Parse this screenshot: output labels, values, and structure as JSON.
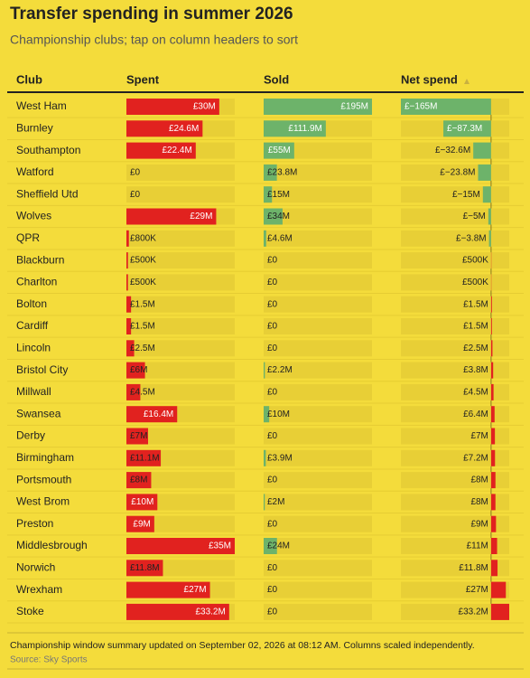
{
  "chart_data": {
    "type": "bar-table",
    "title": "Transfer spending in summer 2026",
    "subtitle": "Championship clubs; tap on column headers to sort",
    "category_label": "Club",
    "categories": [
      "West Ham",
      "Burnley",
      "Southampton",
      "Watford",
      "Sheffield Utd",
      "Wolves",
      "QPR",
      "Blackburn",
      "Charlton",
      "Bolton",
      "Cardiff",
      "Lincoln",
      "Bristol City",
      "Millwall",
      "Swansea",
      "Derby",
      "Birmingham",
      "Portsmouth",
      "West Brom",
      "Preston",
      "Middlesbrough",
      "Norwich",
      "Wrexham",
      "Stoke"
    ],
    "series": [
      {
        "name": "Spent",
        "color": "#e1221f",
        "values": [
          30,
          24.6,
          22.4,
          0,
          0,
          29,
          0.8,
          0.5,
          0.5,
          1.5,
          1.5,
          2.5,
          6,
          4.5,
          16.4,
          7,
          11.1,
          8,
          10,
          9,
          35,
          11.8,
          27,
          33.2
        ],
        "value_labels": [
          "£30M",
          "£24.6M",
          "£22.4M",
          "£0",
          "£0",
          "£29M",
          "£800K",
          "£500K",
          "£500K",
          "£1.5M",
          "£1.5M",
          "£2.5M",
          "£6M",
          "£4.5M",
          "£16.4M",
          "£7M",
          "£11.1M",
          "£8M",
          "£10M",
          "£9M",
          "£35M",
          "£11.8M",
          "£27M",
          "£33.2M"
        ]
      },
      {
        "name": "Sold",
        "color": "#6db36a",
        "values": [
          195,
          111.9,
          55,
          23.8,
          15,
          34,
          4.6,
          0,
          0,
          0,
          0,
          0,
          2.2,
          0,
          10,
          0,
          3.9,
          0,
          2,
          0,
          24,
          0,
          0,
          0
        ],
        "value_labels": [
          "£195M",
          "£111.9M",
          "£55M",
          "£23.8M",
          "£15M",
          "£34M",
          "£4.6M",
          "£0",
          "£0",
          "£0",
          "£0",
          "£0",
          "£2.2M",
          "£0",
          "£10M",
          "£0",
          "£3.9M",
          "£0",
          "£2M",
          "£0",
          "£24M",
          "£0",
          "£0",
          "£0"
        ]
      },
      {
        "name": "Net spend",
        "color": "#e1221f",
        "negative_color": "#6db36a",
        "values": [
          -165,
          -87.3,
          -32.6,
          -23.8,
          -15,
          -5,
          -3.8,
          0.5,
          0.5,
          1.5,
          1.5,
          2.5,
          3.8,
          4.5,
          6.4,
          7,
          7.2,
          8,
          8,
          9,
          11,
          11.8,
          27,
          33.2
        ],
        "value_labels": [
          "£−165M",
          "£−87.3M",
          "£−32.6M",
          "£−23.8M",
          "£−15M",
          "£−5M",
          "£−3.8M",
          "£500K",
          "£500K",
          "£1.5M",
          "£1.5M",
          "£2.5M",
          "£3.8M",
          "£4.5M",
          "£6.4M",
          "£7M",
          "£7.2M",
          "£8M",
          "£8M",
          "£9M",
          "£11M",
          "£11.8M",
          "£27M",
          "£33.2M"
        ]
      }
    ],
    "note": "Championship window summary updated on September 02, 2026 at 08:12 AM. Columns scaled independently.",
    "source": "Source: Sky Sports"
  }
}
